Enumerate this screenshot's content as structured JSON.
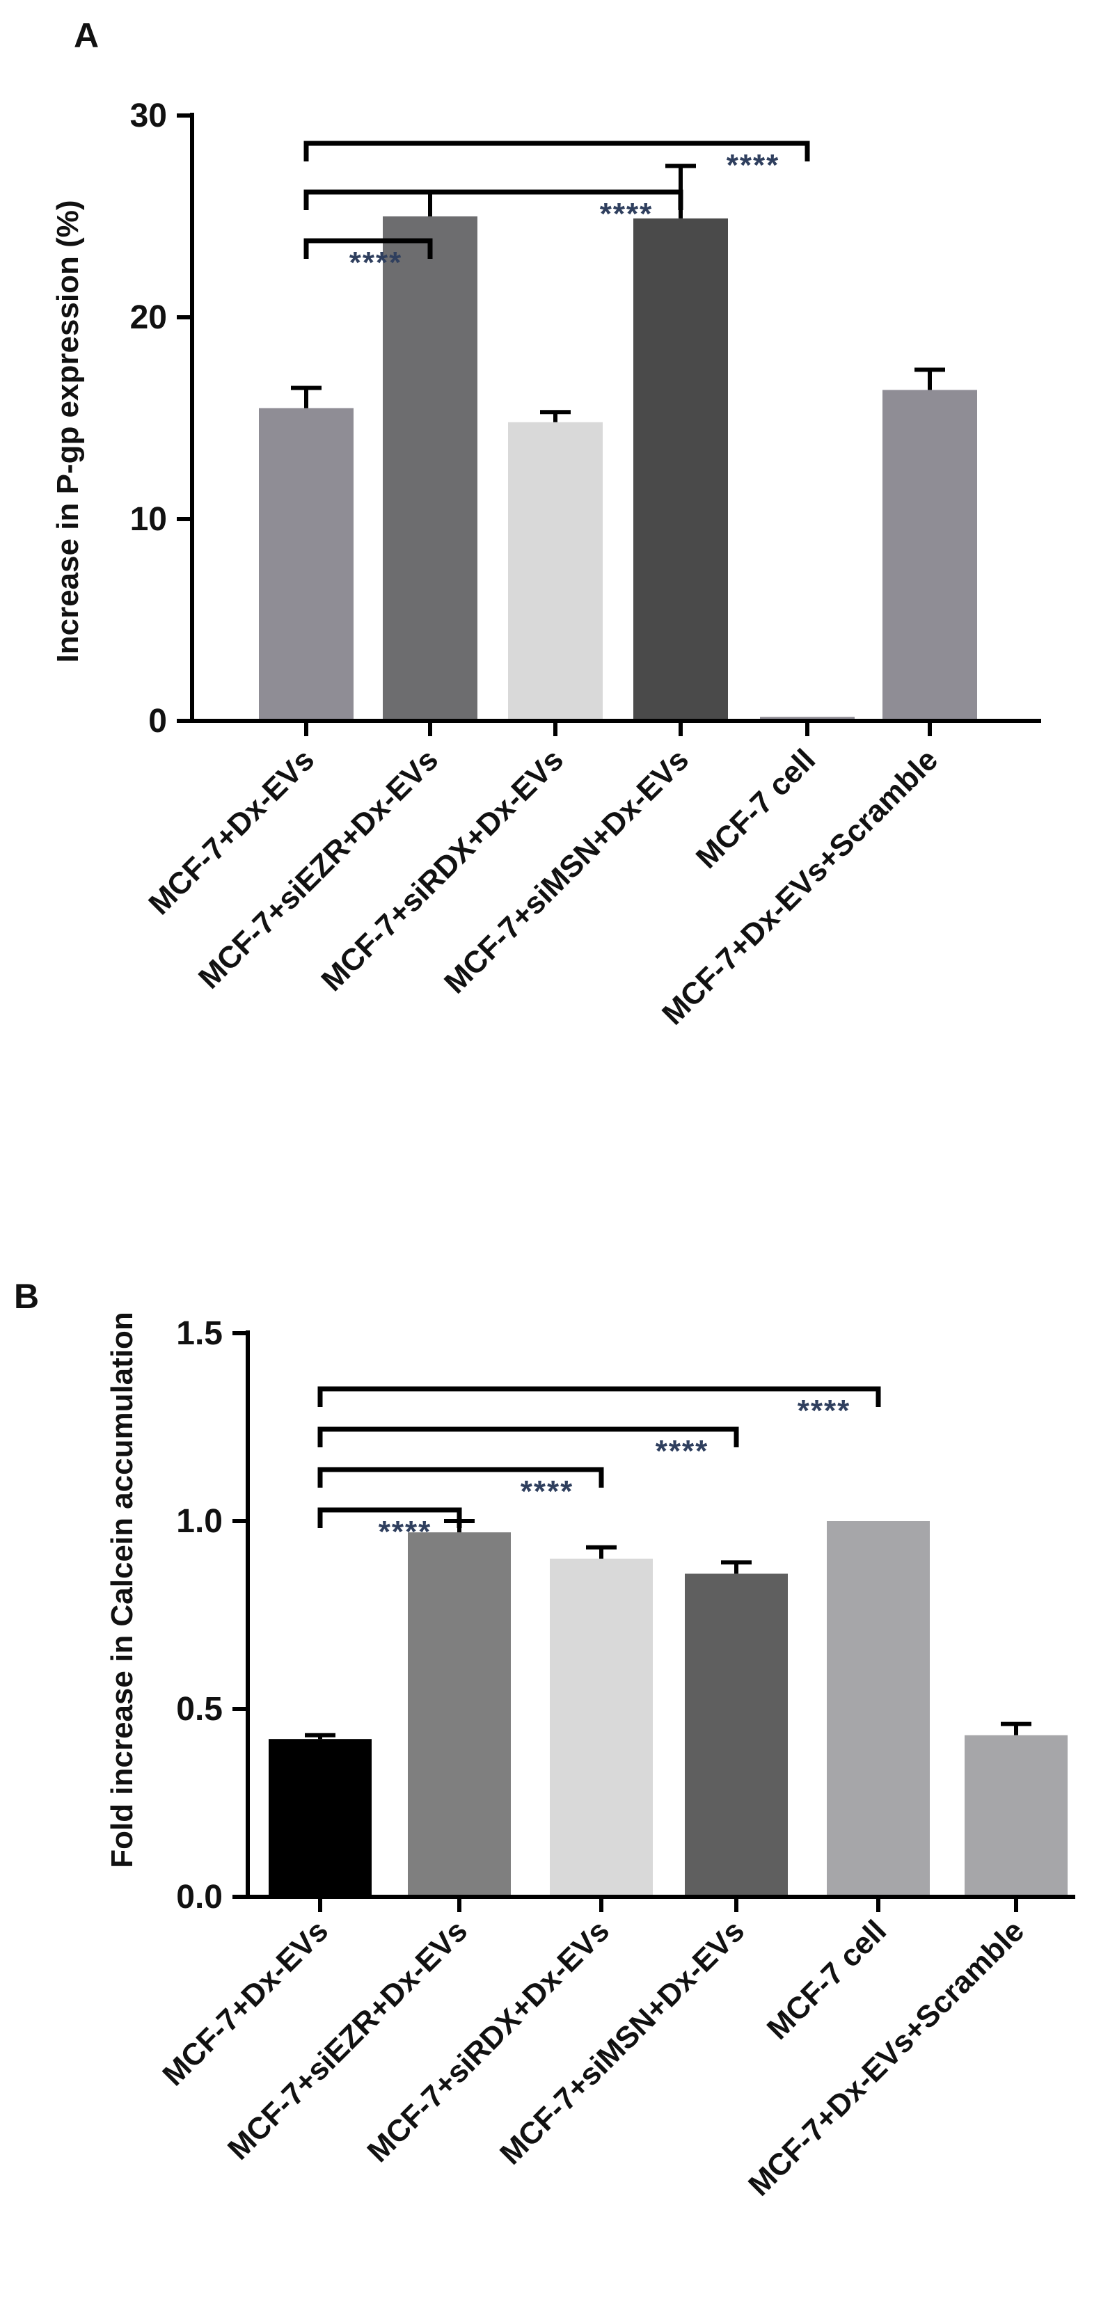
{
  "chart_data": [
    {
      "panel": "A",
      "type": "bar",
      "ylabel": "Increase in P-gp expression (%)",
      "xlabel": "",
      "ylim": [
        0,
        30
      ],
      "yticks": [
        0,
        10,
        20,
        30
      ],
      "categories": [
        "MCF-7+Dx-EVs",
        "MCF-7+siEZR+Dx-EVs",
        "MCF-7+siRDX+Dx-EVs",
        "MCF-7+siMSN+Dx-EVs",
        "MCF-7 cell",
        "MCF-7+Dx-EVs+Scramble"
      ],
      "values": [
        15.5,
        25.0,
        14.8,
        24.9,
        0.2,
        16.4
      ],
      "errors": [
        1.0,
        1.2,
        0.5,
        2.6,
        0,
        1.0
      ],
      "colors": [
        "#8f8d95",
        "#6d6d6f",
        "#d9d9d9",
        "#4a4a4a",
        "#8f8d95",
        "#8f8d95"
      ],
      "significance": [
        {
          "from": 0,
          "to": 1,
          "label": "****"
        },
        {
          "from": 0,
          "to": 3,
          "label": "****"
        },
        {
          "from": 0,
          "to": 4,
          "label": "****"
        }
      ]
    },
    {
      "panel": "B",
      "type": "bar",
      "ylabel": "Fold increase in Calcein accumulation",
      "xlabel": "",
      "ylim": [
        0,
        1.5
      ],
      "yticks": [
        "0.0",
        "0.5",
        "1.0",
        "1.5"
      ],
      "categories": [
        "MCF-7+Dx-EVs",
        "MCF-7+siEZR+Dx-EVs",
        "MCF-7+siRDX+Dx-EVs",
        "MCF-7+siMSN+Dx-EVs",
        "MCF-7 cell",
        "MCF-7+Dx-EVs+Scramble"
      ],
      "values": [
        0.42,
        0.97,
        0.9,
        0.86,
        1.0,
        0.43
      ],
      "errors": [
        0.01,
        0.03,
        0.03,
        0.03,
        0,
        0.03
      ],
      "colors": [
        "#000000",
        "#7f7f7f",
        "#d9d9d9",
        "#5f5f5f",
        "#a6a6a9",
        "#a6a6a9"
      ],
      "significance": [
        {
          "from": 0,
          "to": 1,
          "label": "****"
        },
        {
          "from": 0,
          "to": 2,
          "label": "****"
        },
        {
          "from": 0,
          "to": 3,
          "label": "****"
        },
        {
          "from": 0,
          "to": 4,
          "label": "****"
        }
      ]
    }
  ]
}
